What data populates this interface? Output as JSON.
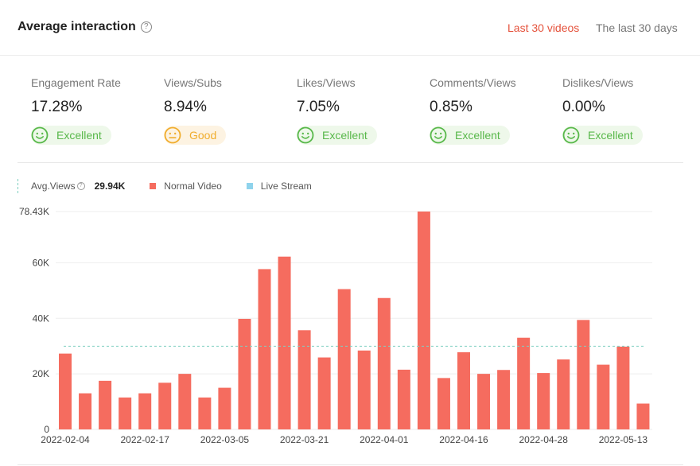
{
  "header": {
    "title": "Average interaction",
    "help_glyph": "?",
    "tabs": [
      {
        "label": "Last 30 videos",
        "active": true
      },
      {
        "label": "The last 30 days",
        "active": false
      }
    ]
  },
  "metrics": [
    {
      "label": "Engagement Rate",
      "value": "17.28%",
      "rating": "Excellent",
      "icon": "smile-icon"
    },
    {
      "label": "Views/Subs",
      "value": "8.94%",
      "rating": "Good",
      "icon": "neutral-face-icon"
    },
    {
      "label": "Likes/Views",
      "value": "7.05%",
      "rating": "Excellent",
      "icon": "smile-icon"
    },
    {
      "label": "Comments/Views",
      "value": "0.85%",
      "rating": "Excellent",
      "icon": "smile-icon"
    },
    {
      "label": "Dislikes/Views",
      "value": "0.00%",
      "rating": "Excellent",
      "icon": "smile-icon"
    }
  ],
  "legend": {
    "avg_label": "Avg.Views",
    "avg_value": "29.94K",
    "normal_label": "Normal Video",
    "live_label": "Live Stream"
  },
  "colors": {
    "accent": "#e5533d",
    "bar": "#f56c5f",
    "live": "#8fd3ec",
    "avg_line": "#7fcfc0",
    "excellent": "#58b84a",
    "good": "#f0ad2d"
  },
  "chart_data": {
    "type": "bar",
    "title": "",
    "xlabel": "",
    "ylabel": "",
    "ylim": [
      0,
      78430
    ],
    "yticks": [
      {
        "value": 0,
        "label": "0"
      },
      {
        "value": 20000,
        "label": "20K"
      },
      {
        "value": 40000,
        "label": "40K"
      },
      {
        "value": 60000,
        "label": "60K"
      },
      {
        "value": 78430,
        "label": "78.43K"
      }
    ],
    "average": 29940,
    "xtick_labels": [
      {
        "index": 0,
        "label": "2022-02-04"
      },
      {
        "index": 4,
        "label": "2022-02-17"
      },
      {
        "index": 8,
        "label": "2022-03-05"
      },
      {
        "index": 12,
        "label": "2022-03-21"
      },
      {
        "index": 16,
        "label": "2022-04-01"
      },
      {
        "index": 20,
        "label": "2022-04-16"
      },
      {
        "index": 24,
        "label": "2022-04-28"
      },
      {
        "index": 28,
        "label": "2022-05-13"
      }
    ],
    "series": [
      {
        "name": "Normal Video",
        "values": [
          27300,
          13000,
          17500,
          11500,
          13000,
          16800,
          20000,
          11500,
          15000,
          39800,
          57700,
          62200,
          35700,
          25900,
          50500,
          28400,
          47300,
          21500,
          78430,
          18500,
          27800,
          20000,
          21400,
          33000,
          20300,
          25200,
          39400,
          23300,
          29800,
          9300
        ]
      },
      {
        "name": "Live Stream",
        "values": []
      }
    ]
  }
}
